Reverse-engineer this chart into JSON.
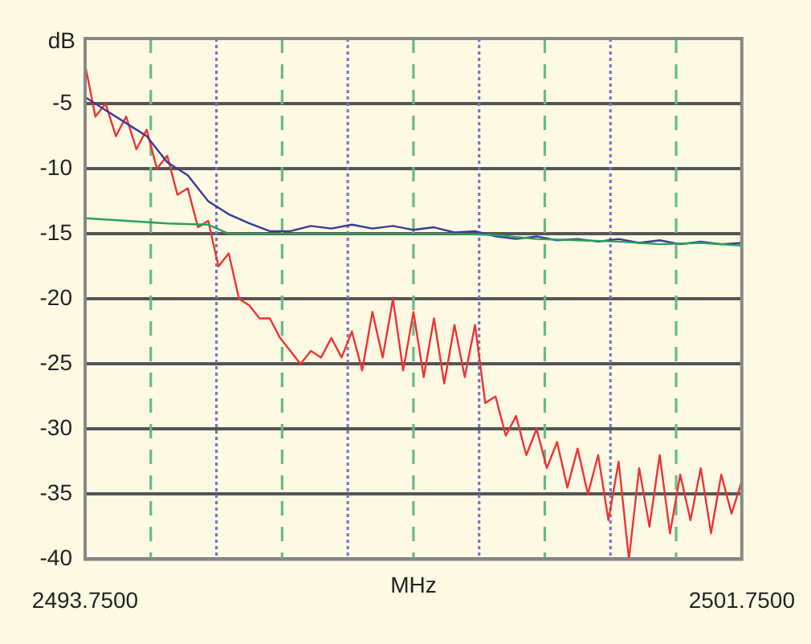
{
  "chart_data": {
    "type": "line",
    "ylabel": "dB",
    "xlabel": "MHz",
    "xlim": [
      2493.75,
      2501.75
    ],
    "ylim": [
      -40,
      0
    ],
    "xticks": [
      {
        "value": 2493.75,
        "label": "2493.7500"
      },
      {
        "value": 2494.55,
        "label": null
      },
      {
        "value": 2495.35,
        "label": null
      },
      {
        "value": 2496.15,
        "label": null
      },
      {
        "value": 2496.95,
        "label": null
      },
      {
        "value": 2497.75,
        "label": null
      },
      {
        "value": 2498.55,
        "label": null
      },
      {
        "value": 2499.35,
        "label": null
      },
      {
        "value": 2500.15,
        "label": null
      },
      {
        "value": 2500.95,
        "label": null
      },
      {
        "value": 2501.75,
        "label": "2501.7500"
      }
    ],
    "yticks": [
      -40,
      -35,
      -30,
      -25,
      -20,
      -15,
      -10,
      -5
    ],
    "grid": true,
    "legend": false,
    "marker": "none",
    "line_style": "solid",
    "series": [
      {
        "color": "#2aa05a",
        "x": [
          2493.75,
          2494.25,
          2494.75,
          2495.25,
          2495.5,
          2496.25,
          2497.25,
          2498.25,
          2498.75,
          2499.25,
          2499.75,
          2500.25,
          2500.75,
          2501.25,
          2501.75
        ],
        "values": [
          -13.8,
          -14,
          -14.2,
          -14.3,
          -15,
          -15,
          -15,
          -15,
          -15.1,
          -15.4,
          -15.5,
          -15.6,
          -15.8,
          -15.7,
          -15.9
        ]
      },
      {
        "color": "#3a3a9a",
        "x": [
          2493.75,
          2494,
          2494.25,
          2494.5,
          2494.75,
          2495,
          2495.25,
          2495.5,
          2495.75,
          2496,
          2496.25,
          2496.5,
          2496.75,
          2497,
          2497.25,
          2497.5,
          2497.75,
          2498,
          2498.25,
          2498.5,
          2498.75,
          2499,
          2499.25,
          2499.5,
          2499.75,
          2500,
          2500.25,
          2500.5,
          2500.75,
          2501,
          2501.25,
          2501.5,
          2501.75
        ],
        "values": [
          -4.5,
          -5.5,
          -6.5,
          -7.5,
          -9.5,
          -10.5,
          -12.5,
          -13.5,
          -14.2,
          -14.8,
          -14.8,
          -14.4,
          -14.6,
          -14.3,
          -14.6,
          -14.4,
          -14.7,
          -14.5,
          -14.9,
          -14.8,
          -15.2,
          -15.4,
          -15.2,
          -15.5,
          -15.4,
          -15.6,
          -15.4,
          -15.7,
          -15.5,
          -15.8,
          -15.6,
          -15.8,
          -15.7
        ]
      },
      {
        "color": "#ee3333",
        "x": [
          2493.75,
          2493.875,
          2494,
          2494.125,
          2494.25,
          2494.375,
          2494.5,
          2494.625,
          2494.75,
          2494.875,
          2495,
          2495.125,
          2495.25,
          2495.375,
          2495.5,
          2495.625,
          2495.75,
          2495.875,
          2496,
          2496.125,
          2496.25,
          2496.375,
          2496.5,
          2496.625,
          2496.75,
          2496.875,
          2497,
          2497.125,
          2497.25,
          2497.375,
          2497.5,
          2497.625,
          2497.75,
          2497.875,
          2498,
          2498.125,
          2498.25,
          2498.375,
          2498.5,
          2498.625,
          2498.75,
          2498.875,
          2499,
          2499.125,
          2499.25,
          2499.375,
          2499.5,
          2499.625,
          2499.75,
          2499.875,
          2500,
          2500.125,
          2500.25,
          2500.375,
          2500.5,
          2500.625,
          2500.75,
          2500.875,
          2501,
          2501.125,
          2501.25,
          2501.375,
          2501.5,
          2501.625,
          2501.75
        ],
        "values": [
          -2,
          -6,
          -5,
          -7.5,
          -6,
          -8.5,
          -7,
          -10,
          -9,
          -12,
          -11.5,
          -14.5,
          -14,
          -17.5,
          -16.5,
          -20,
          -20.5,
          -21.5,
          -21.5,
          -23,
          -24,
          -25,
          -24,
          -24.5,
          -23,
          -24.5,
          -22.5,
          -25.5,
          -21,
          -24.5,
          -20,
          -25.5,
          -21,
          -26,
          -21.5,
          -26.5,
          -22,
          -26,
          -22,
          -28,
          -27.5,
          -30.5,
          -29,
          -32,
          -30,
          -33,
          -31,
          -34.5,
          -31.5,
          -35,
          -32,
          -37,
          -32.5,
          -40,
          -33,
          -37.5,
          -32,
          -38,
          -33.5,
          -37,
          -33,
          -38,
          -33.5,
          -36.5,
          -34
        ]
      }
    ]
  }
}
